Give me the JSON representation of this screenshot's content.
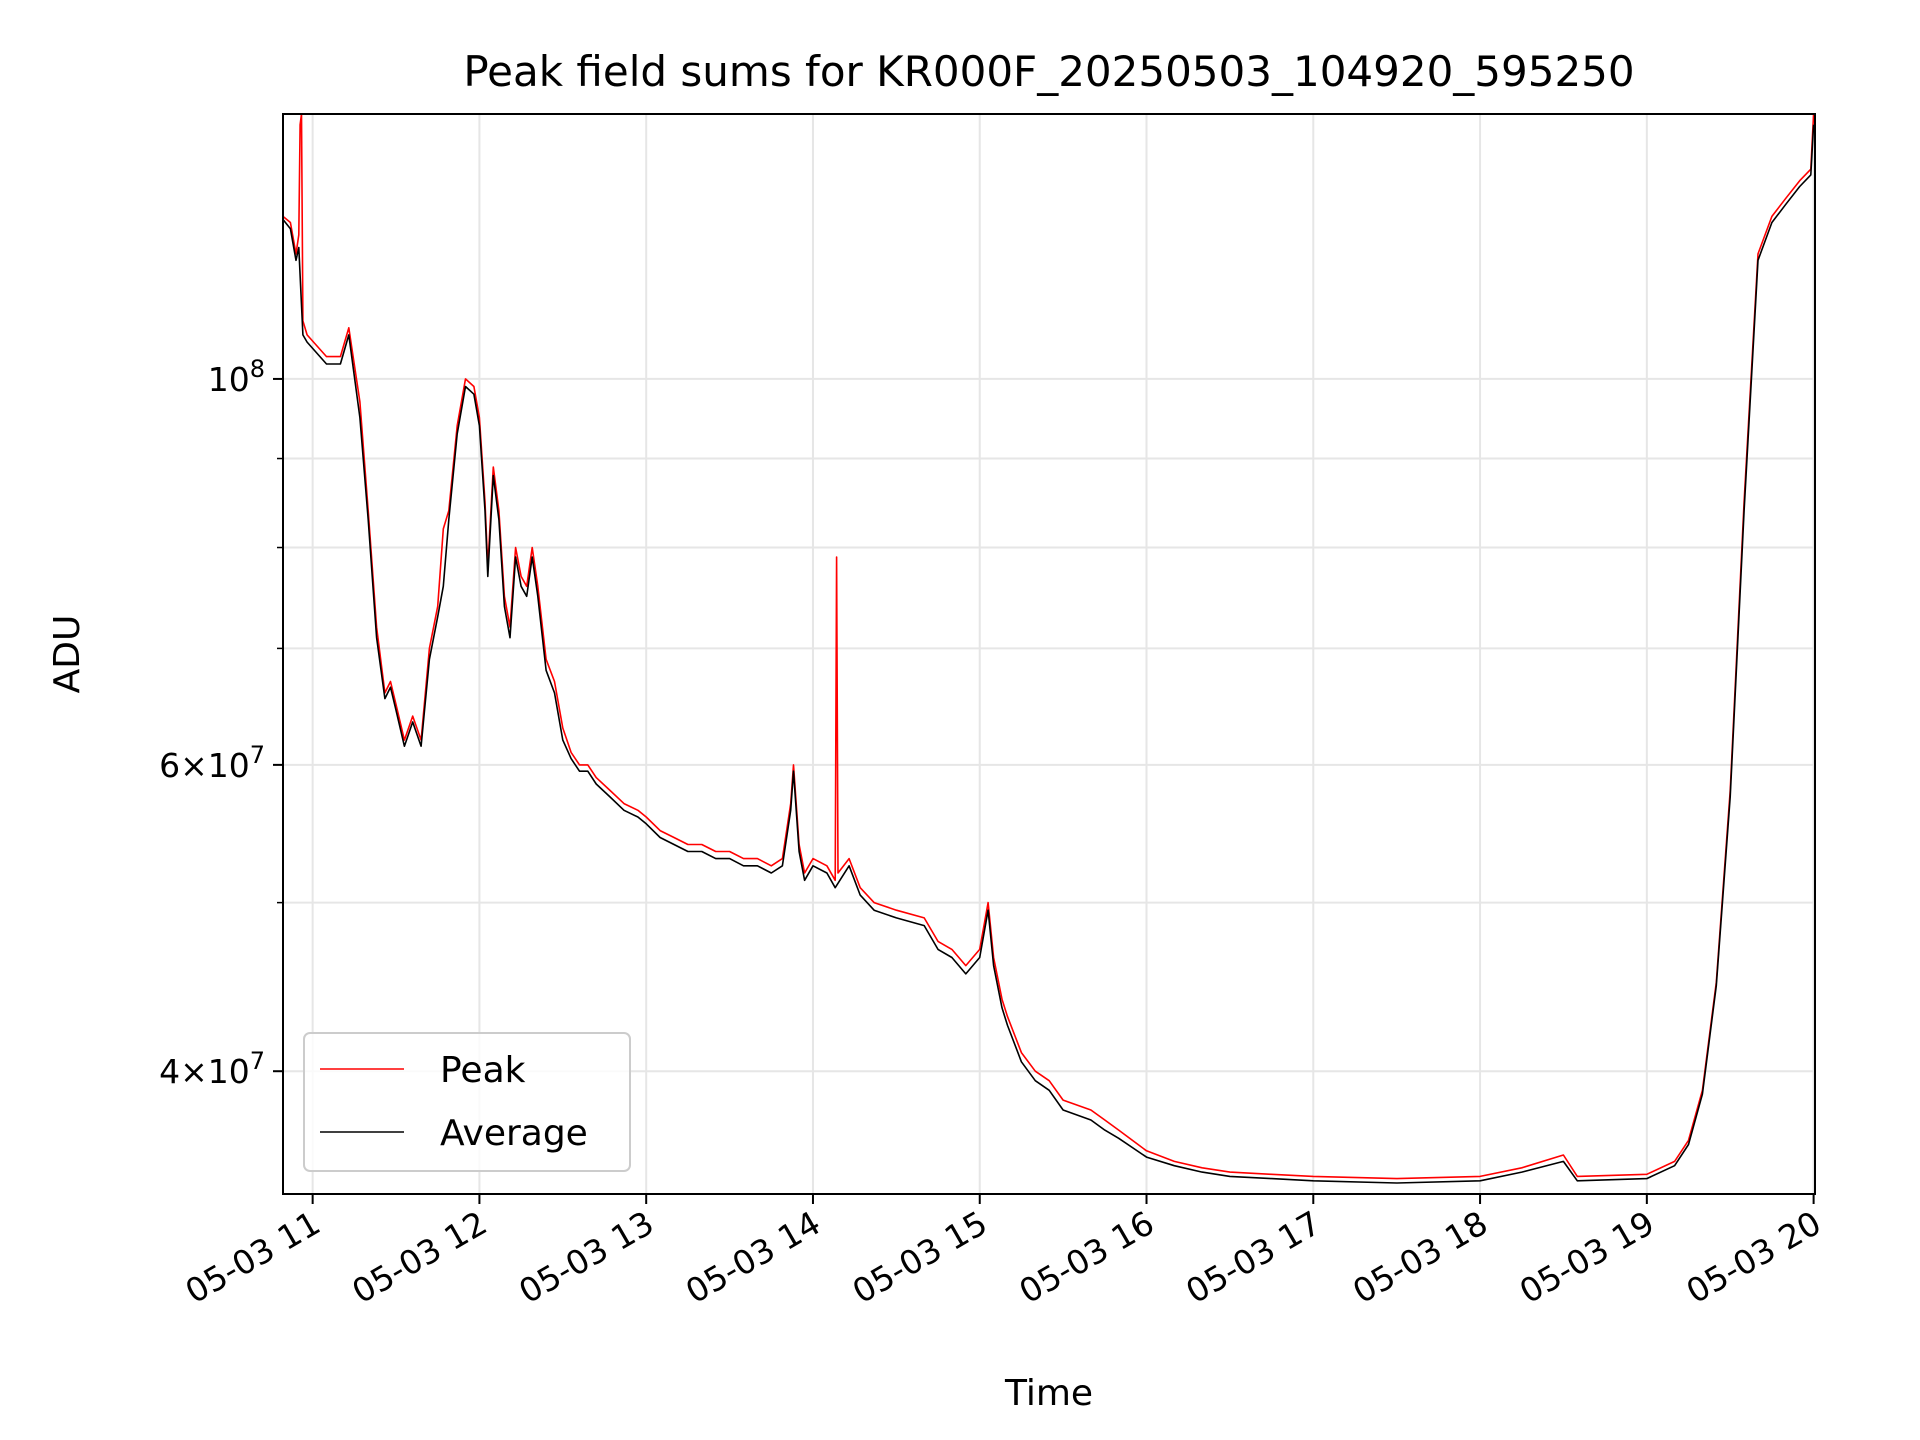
{
  "chart_data": {
    "type": "line",
    "title": "Peak field sums for KR000F_20250503_104920_595250",
    "xlabel": "Time",
    "ylabel": "ADU",
    "y_scale": "log",
    "grid": true,
    "legend_position": "lower-left",
    "x_range": [
      "2025-05-03 10:49:20",
      "2025-05-03 20:00:30"
    ],
    "y_range": [
      34000000,
      142000000
    ],
    "x_ticks": [
      {
        "value": "2025-05-03 11:00",
        "label": "05-03 11"
      },
      {
        "value": "2025-05-03 12:00",
        "label": "05-03 12"
      },
      {
        "value": "2025-05-03 13:00",
        "label": "05-03 13"
      },
      {
        "value": "2025-05-03 14:00",
        "label": "05-03 14"
      },
      {
        "value": "2025-05-03 15:00",
        "label": "05-03 15"
      },
      {
        "value": "2025-05-03 16:00",
        "label": "05-03 16"
      },
      {
        "value": "2025-05-03 17:00",
        "label": "05-03 17"
      },
      {
        "value": "2025-05-03 18:00",
        "label": "05-03 18"
      },
      {
        "value": "2025-05-03 19:00",
        "label": "05-03 19"
      },
      {
        "value": "2025-05-03 20:00",
        "label": "05-03 20"
      }
    ],
    "y_major_ticks": [
      {
        "value": 40000000,
        "base": "4",
        "exp": "7"
      },
      {
        "value": 60000000,
        "base": "6",
        "exp": "7"
      },
      {
        "value": 100000000,
        "base": "",
        "exp": "8"
      }
    ],
    "y_minor_ticks": [
      50000000,
      70000000,
      80000000,
      90000000
    ],
    "series": [
      {
        "name": "Peak",
        "color": "#ff0000",
        "points": [
          [
            "2025-05-03 10:49:20",
            124000000
          ],
          [
            "2025-05-03 10:52:00",
            123000000
          ],
          [
            "2025-05-03 10:54:00",
            118000000
          ],
          [
            "2025-05-03 10:55:00",
            121000000
          ],
          [
            "2025-05-03 10:55:30",
            140000000
          ],
          [
            "2025-05-03 10:56:00",
            142000000
          ],
          [
            "2025-05-03 10:56:30",
            108000000
          ],
          [
            "2025-05-03 10:58:00",
            106000000
          ],
          [
            "2025-05-03 11:05:00",
            103000000
          ],
          [
            "2025-05-03 11:10:00",
            103000000
          ],
          [
            "2025-05-03 11:13:00",
            107000000
          ],
          [
            "2025-05-03 11:17:00",
            97000000
          ],
          [
            "2025-05-03 11:20:00",
            84000000
          ],
          [
            "2025-05-03 11:23:00",
            72000000
          ],
          [
            "2025-05-03 11:26:00",
            66000000
          ],
          [
            "2025-05-03 11:28:00",
            67000000
          ],
          [
            "2025-05-03 11:30:00",
            65000000
          ],
          [
            "2025-05-03 11:33:00",
            62000000
          ],
          [
            "2025-05-03 11:36:00",
            64000000
          ],
          [
            "2025-05-03 11:39:00",
            62000000
          ],
          [
            "2025-05-03 11:42:00",
            70000000
          ],
          [
            "2025-05-03 11:45:00",
            74000000
          ],
          [
            "2025-05-03 11:47:00",
            82000000
          ],
          [
            "2025-05-03 11:49:00",
            84000000
          ],
          [
            "2025-05-03 11:52:00",
            94000000
          ],
          [
            "2025-05-03 11:55:00",
            100000000
          ],
          [
            "2025-05-03 11:58:00",
            99000000
          ],
          [
            "2025-05-03 12:00:00",
            95000000
          ],
          [
            "2025-05-03 12:02:00",
            85000000
          ],
          [
            "2025-05-03 12:03:00",
            78000000
          ],
          [
            "2025-05-03 12:05:00",
            89000000
          ],
          [
            "2025-05-03 12:07:00",
            84000000
          ],
          [
            "2025-05-03 12:09:00",
            75000000
          ],
          [
            "2025-05-03 12:11:00",
            72000000
          ],
          [
            "2025-05-03 12:13:00",
            80000000
          ],
          [
            "2025-05-03 12:15:00",
            77000000
          ],
          [
            "2025-05-03 12:17:00",
            76000000
          ],
          [
            "2025-05-03 12:19:00",
            80000000
          ],
          [
            "2025-05-03 12:21:00",
            76000000
          ],
          [
            "2025-05-03 12:24:00",
            69000000
          ],
          [
            "2025-05-03 12:27:00",
            67000000
          ],
          [
            "2025-05-03 12:30:00",
            63000000
          ],
          [
            "2025-05-03 12:33:00",
            61000000
          ],
          [
            "2025-05-03 12:36:00",
            60000000
          ],
          [
            "2025-05-03 12:39:00",
            60000000
          ],
          [
            "2025-05-03 12:42:00",
            59000000
          ],
          [
            "2025-05-03 12:47:00",
            58000000
          ],
          [
            "2025-05-03 12:52:00",
            57000000
          ],
          [
            "2025-05-03 12:57:00",
            56500000
          ],
          [
            "2025-05-03 13:00:00",
            56000000
          ],
          [
            "2025-05-03 13:05:00",
            55000000
          ],
          [
            "2025-05-03 13:10:00",
            54500000
          ],
          [
            "2025-05-03 13:15:00",
            54000000
          ],
          [
            "2025-05-03 13:20:00",
            54000000
          ],
          [
            "2025-05-03 13:25:00",
            53500000
          ],
          [
            "2025-05-03 13:30:00",
            53500000
          ],
          [
            "2025-05-03 13:35:00",
            53000000
          ],
          [
            "2025-05-03 13:40:00",
            53000000
          ],
          [
            "2025-05-03 13:45:00",
            52500000
          ],
          [
            "2025-05-03 13:49:00",
            53000000
          ],
          [
            "2025-05-03 13:52:00",
            57000000
          ],
          [
            "2025-05-03 13:53:00",
            60000000
          ],
          [
            "2025-05-03 13:55:00",
            54000000
          ],
          [
            "2025-05-03 13:57:00",
            52000000
          ],
          [
            "2025-05-03 14:00:00",
            53000000
          ],
          [
            "2025-05-03 14:05:00",
            52500000
          ],
          [
            "2025-05-03 14:08:00",
            51500000
          ],
          [
            "2025-05-03 14:08:30",
            79000000
          ],
          [
            "2025-05-03 14:09:00",
            52000000
          ],
          [
            "2025-05-03 14:13:00",
            53000000
          ],
          [
            "2025-05-03 14:17:00",
            51000000
          ],
          [
            "2025-05-03 14:22:00",
            50000000
          ],
          [
            "2025-05-03 14:30:00",
            49500000
          ],
          [
            "2025-05-03 14:40:00",
            49000000
          ],
          [
            "2025-05-03 14:45:00",
            47500000
          ],
          [
            "2025-05-03 14:50:00",
            47000000
          ],
          [
            "2025-05-03 14:55:00",
            46000000
          ],
          [
            "2025-05-03 15:00:00",
            47000000
          ],
          [
            "2025-05-03 15:03:00",
            50000000
          ],
          [
            "2025-05-03 15:05:00",
            46500000
          ],
          [
            "2025-05-03 15:08:00",
            44000000
          ],
          [
            "2025-05-03 15:10:00",
            43000000
          ],
          [
            "2025-05-03 15:15:00",
            41000000
          ],
          [
            "2025-05-03 15:20:00",
            40000000
          ],
          [
            "2025-05-03 15:25:00",
            39500000
          ],
          [
            "2025-05-03 15:30:00",
            38500000
          ],
          [
            "2025-05-03 15:40:00",
            38000000
          ],
          [
            "2025-05-03 15:45:00",
            37500000
          ],
          [
            "2025-05-03 15:50:00",
            37000000
          ],
          [
            "2025-05-03 16:00:00",
            36000000
          ],
          [
            "2025-05-03 16:10:00",
            35500000
          ],
          [
            "2025-05-03 16:20:00",
            35200000
          ],
          [
            "2025-05-03 16:30:00",
            35000000
          ],
          [
            "2025-05-03 16:45:00",
            34900000
          ],
          [
            "2025-05-03 17:00:00",
            34800000
          ],
          [
            "2025-05-03 17:30:00",
            34700000
          ],
          [
            "2025-05-03 18:00:00",
            34800000
          ],
          [
            "2025-05-03 18:15:00",
            35200000
          ],
          [
            "2025-05-03 18:30:00",
            35800000
          ],
          [
            "2025-05-03 18:35:00",
            34800000
          ],
          [
            "2025-05-03 19:00:00",
            34900000
          ],
          [
            "2025-05-03 19:10:00",
            35500000
          ],
          [
            "2025-05-03 19:15:00",
            36500000
          ],
          [
            "2025-05-03 19:20:00",
            39000000
          ],
          [
            "2025-05-03 19:25:00",
            45000000
          ],
          [
            "2025-05-03 19:30:00",
            58000000
          ],
          [
            "2025-05-03 19:35:00",
            85000000
          ],
          [
            "2025-05-03 19:40:00",
            118000000
          ],
          [
            "2025-05-03 19:45:00",
            124000000
          ],
          [
            "2025-05-03 19:50:00",
            127000000
          ],
          [
            "2025-05-03 19:55:00",
            130000000
          ],
          [
            "2025-05-03 19:59:00",
            132000000
          ],
          [
            "2025-05-03 20:00:00",
            142000000
          ]
        ]
      },
      {
        "name": "Average",
        "color": "#000000",
        "points": [
          [
            "2025-05-03 10:49:20",
            123500000
          ],
          [
            "2025-05-03 10:52:00",
            122000000
          ],
          [
            "2025-05-03 10:54:00",
            117000000
          ],
          [
            "2025-05-03 10:55:00",
            119000000
          ],
          [
            "2025-05-03 10:56:30",
            106000000
          ],
          [
            "2025-05-03 10:58:00",
            105000000
          ],
          [
            "2025-05-03 11:05:00",
            102000000
          ],
          [
            "2025-05-03 11:10:00",
            102000000
          ],
          [
            "2025-05-03 11:13:00",
            106000000
          ],
          [
            "2025-05-03 11:17:00",
            95000000
          ],
          [
            "2025-05-03 11:20:00",
            83000000
          ],
          [
            "2025-05-03 11:23:00",
            71000000
          ],
          [
            "2025-05-03 11:26:00",
            65500000
          ],
          [
            "2025-05-03 11:28:00",
            66500000
          ],
          [
            "2025-05-03 11:30:00",
            64500000
          ],
          [
            "2025-05-03 11:33:00",
            61500000
          ],
          [
            "2025-05-03 11:36:00",
            63500000
          ],
          [
            "2025-05-03 11:39:00",
            61500000
          ],
          [
            "2025-05-03 11:42:00",
            69000000
          ],
          [
            "2025-05-03 11:45:00",
            73000000
          ],
          [
            "2025-05-03 11:47:00",
            76000000
          ],
          [
            "2025-05-03 11:49:00",
            83000000
          ],
          [
            "2025-05-03 11:52:00",
            93000000
          ],
          [
            "2025-05-03 11:55:00",
            99000000
          ],
          [
            "2025-05-03 11:58:00",
            98000000
          ],
          [
            "2025-05-03 12:00:00",
            94000000
          ],
          [
            "2025-05-03 12:02:00",
            84000000
          ],
          [
            "2025-05-03 12:03:00",
            77000000
          ],
          [
            "2025-05-03 12:05:00",
            88000000
          ],
          [
            "2025-05-03 12:07:00",
            83000000
          ],
          [
            "2025-05-03 12:09:00",
            74000000
          ],
          [
            "2025-05-03 12:11:00",
            71000000
          ],
          [
            "2025-05-03 12:13:00",
            79000000
          ],
          [
            "2025-05-03 12:15:00",
            76000000
          ],
          [
            "2025-05-03 12:17:00",
            75000000
          ],
          [
            "2025-05-03 12:19:00",
            79000000
          ],
          [
            "2025-05-03 12:21:00",
            75000000
          ],
          [
            "2025-05-03 12:24:00",
            68000000
          ],
          [
            "2025-05-03 12:27:00",
            66000000
          ],
          [
            "2025-05-03 12:30:00",
            62000000
          ],
          [
            "2025-05-03 12:33:00",
            60500000
          ],
          [
            "2025-05-03 12:36:00",
            59500000
          ],
          [
            "2025-05-03 12:39:00",
            59500000
          ],
          [
            "2025-05-03 12:42:00",
            58500000
          ],
          [
            "2025-05-03 12:47:00",
            57500000
          ],
          [
            "2025-05-03 12:52:00",
            56500000
          ],
          [
            "2025-05-03 12:57:00",
            56000000
          ],
          [
            "2025-05-03 13:00:00",
            55500000
          ],
          [
            "2025-05-03 13:05:00",
            54500000
          ],
          [
            "2025-05-03 13:10:00",
            54000000
          ],
          [
            "2025-05-03 13:15:00",
            53500000
          ],
          [
            "2025-05-03 13:20:00",
            53500000
          ],
          [
            "2025-05-03 13:25:00",
            53000000
          ],
          [
            "2025-05-03 13:30:00",
            53000000
          ],
          [
            "2025-05-03 13:35:00",
            52500000
          ],
          [
            "2025-05-03 13:40:00",
            52500000
          ],
          [
            "2025-05-03 13:45:00",
            52000000
          ],
          [
            "2025-05-03 13:49:00",
            52500000
          ],
          [
            "2025-05-03 13:52:00",
            56500000
          ],
          [
            "2025-05-03 13:53:00",
            59500000
          ],
          [
            "2025-05-03 13:55:00",
            53500000
          ],
          [
            "2025-05-03 13:57:00",
            51500000
          ],
          [
            "2025-05-03 14:00:00",
            52500000
          ],
          [
            "2025-05-03 14:05:00",
            52000000
          ],
          [
            "2025-05-03 14:08:00",
            51000000
          ],
          [
            "2025-05-03 14:13:00",
            52500000
          ],
          [
            "2025-05-03 14:17:00",
            50500000
          ],
          [
            "2025-05-03 14:22:00",
            49500000
          ],
          [
            "2025-05-03 14:30:00",
            49000000
          ],
          [
            "2025-05-03 14:40:00",
            48500000
          ],
          [
            "2025-05-03 14:45:00",
            47000000
          ],
          [
            "2025-05-03 14:50:00",
            46500000
          ],
          [
            "2025-05-03 14:55:00",
            45500000
          ],
          [
            "2025-05-03 15:00:00",
            46500000
          ],
          [
            "2025-05-03 15:03:00",
            49500000
          ],
          [
            "2025-05-03 15:05:00",
            46000000
          ],
          [
            "2025-05-03 15:08:00",
            43500000
          ],
          [
            "2025-05-03 15:10:00",
            42500000
          ],
          [
            "2025-05-03 15:15:00",
            40500000
          ],
          [
            "2025-05-03 15:20:00",
            39500000
          ],
          [
            "2025-05-03 15:25:00",
            39000000
          ],
          [
            "2025-05-03 15:30:00",
            38000000
          ],
          [
            "2025-05-03 15:40:00",
            37500000
          ],
          [
            "2025-05-03 15:45:00",
            37000000
          ],
          [
            "2025-05-03 15:50:00",
            36600000
          ],
          [
            "2025-05-03 16:00:00",
            35700000
          ],
          [
            "2025-05-03 16:10:00",
            35300000
          ],
          [
            "2025-05-03 16:20:00",
            35000000
          ],
          [
            "2025-05-03 16:30:00",
            34800000
          ],
          [
            "2025-05-03 16:45:00",
            34700000
          ],
          [
            "2025-05-03 17:00:00",
            34600000
          ],
          [
            "2025-05-03 17:30:00",
            34500000
          ],
          [
            "2025-05-03 18:00:00",
            34600000
          ],
          [
            "2025-05-03 18:15:00",
            35000000
          ],
          [
            "2025-05-03 18:30:00",
            35500000
          ],
          [
            "2025-05-03 18:35:00",
            34600000
          ],
          [
            "2025-05-03 19:00:00",
            34700000
          ],
          [
            "2025-05-03 19:10:00",
            35300000
          ],
          [
            "2025-05-03 19:15:00",
            36300000
          ],
          [
            "2025-05-03 19:20:00",
            38800000
          ],
          [
            "2025-05-03 19:25:00",
            44800000
          ],
          [
            "2025-05-03 19:30:00",
            57500000
          ],
          [
            "2025-05-03 19:35:00",
            84000000
          ],
          [
            "2025-05-03 19:40:00",
            117000000
          ],
          [
            "2025-05-03 19:45:00",
            123000000
          ],
          [
            "2025-05-03 19:50:00",
            126000000
          ],
          [
            "2025-05-03 19:55:00",
            129000000
          ],
          [
            "2025-05-03 19:59:00",
            131000000
          ],
          [
            "2025-05-03 20:00:00",
            140000000
          ]
        ]
      }
    ]
  }
}
